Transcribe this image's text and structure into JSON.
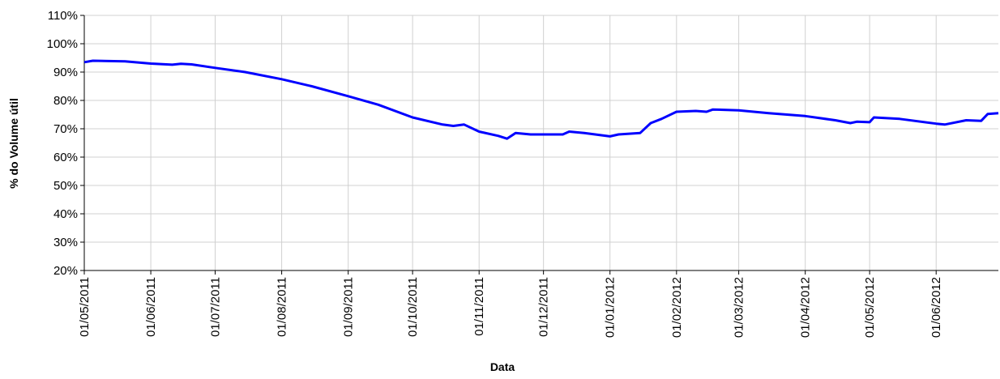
{
  "chart_data": {
    "type": "line",
    "x_label": "Data",
    "y_label": "% do Volume útil",
    "x": [
      "01/05/2011",
      "05/05/2011",
      "20/05/2011",
      "01/06/2011",
      "11/06/2011",
      "15/06/2011",
      "20/06/2011",
      "01/07/2011",
      "15/07/2011",
      "01/08/2011",
      "15/08/2011",
      "01/09/2011",
      "15/09/2011",
      "01/10/2011",
      "15/10/2011",
      "20/10/2011",
      "25/10/2011",
      "01/11/2011",
      "10/11/2011",
      "14/11/2011",
      "18/11/2011",
      "25/11/2011",
      "01/12/2011",
      "10/12/2011",
      "13/12/2011",
      "20/12/2011",
      "01/01/2012",
      "05/01/2012",
      "15/01/2012",
      "20/01/2012",
      "25/01/2012",
      "01/02/2012",
      "10/02/2012",
      "15/02/2012",
      "18/02/2012",
      "01/03/2012",
      "15/03/2012",
      "01/04/2012",
      "15/04/2012",
      "22/04/2012",
      "25/04/2012",
      "01/05/2012",
      "03/05/2012",
      "15/05/2012",
      "01/06/2012",
      "05/06/2012",
      "15/06/2012",
      "22/06/2012",
      "25/06/2012",
      "30/06/2012"
    ],
    "series": [
      {
        "name": "% do Volume útil",
        "color": "#0000ff",
        "values": [
          93.5,
          94,
          93.8,
          93,
          92.6,
          92.9,
          92.7,
          91.5,
          90,
          87.5,
          85,
          81.5,
          78.5,
          74,
          71.5,
          71,
          71.5,
          69,
          67.5,
          66.5,
          68.5,
          68,
          68,
          68,
          69,
          68.5,
          67.3,
          68,
          68.5,
          72,
          73.5,
          76,
          76.3,
          76,
          76.8,
          76.5,
          75.5,
          74.5,
          73,
          72,
          72.5,
          72.3,
          74,
          73.5,
          71.8,
          71.5,
          73,
          72.8,
          75.2,
          75.5
        ]
      }
    ],
    "xlim": [
      "01/05/2011",
      "30/06/2012"
    ],
    "xticks": [
      "01/05/2011",
      "01/06/2011",
      "01/07/2011",
      "01/08/2011",
      "01/09/2011",
      "01/10/2011",
      "01/11/2011",
      "01/12/2011",
      "01/01/2012",
      "01/02/2012",
      "01/03/2012",
      "01/04/2012",
      "01/05/2012",
      "01/06/2012"
    ],
    "ylim": [
      20,
      110
    ],
    "yticks": [
      {
        "value": 20,
        "label": "20%"
      },
      {
        "value": 30,
        "label": "30%"
      },
      {
        "value": 40,
        "label": "40%"
      },
      {
        "value": 50,
        "label": "50%"
      },
      {
        "value": 60,
        "label": "60%"
      },
      {
        "value": 70,
        "label": "70%"
      },
      {
        "value": 80,
        "label": "80%"
      },
      {
        "value": 90,
        "label": "90%"
      },
      {
        "value": 100,
        "label": "100%"
      },
      {
        "value": 110,
        "label": "110%"
      }
    ],
    "grid": true
  }
}
